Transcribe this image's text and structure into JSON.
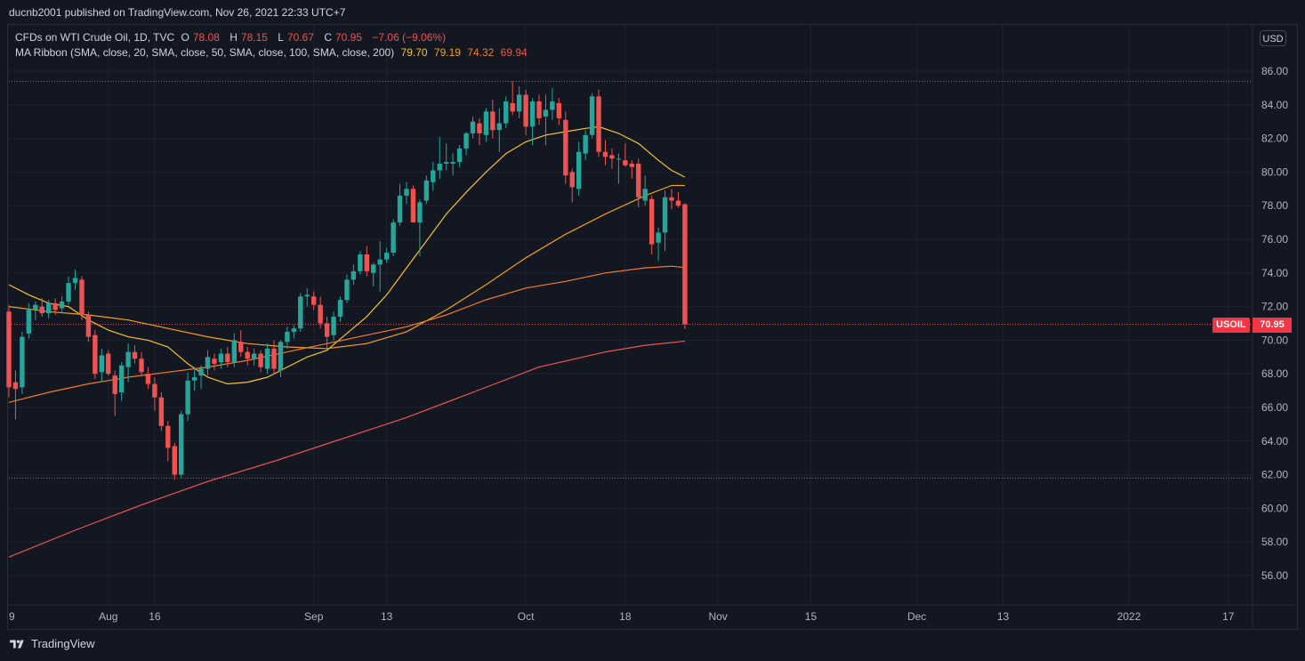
{
  "header": {
    "published": "ducnb2001 published on TradingView.com, Nov 26, 2021 22:33 UTC+7"
  },
  "legend": {
    "title": "CFDs on WTI Crude Oil, 1D, TVC",
    "o_label": "O",
    "o_value": "78.08",
    "h_label": "H",
    "h_value": "78.15",
    "l_label": "L",
    "l_value": "70.67",
    "c_label": "C",
    "c_value": "70.95",
    "change": "−7.06 (−9.06%)",
    "ma_title": "MA Ribbon (SMA, close, 20, SMA, close, 50, SMA, close, 100, SMA, close, 200)",
    "ma_values": [
      {
        "value": "79.70",
        "color": "#f7c325"
      },
      {
        "value": "79.19",
        "color": "#f4a018"
      },
      {
        "value": "74.32",
        "color": "#f57c25"
      },
      {
        "value": "69.94",
        "color": "#ef5350"
      }
    ]
  },
  "currency_button": "USD",
  "price_tag": {
    "symbol": "USOIL",
    "value": "70.95"
  },
  "footer": {
    "brand": "TradingView"
  },
  "chart_data": {
    "type": "candlestick",
    "y_axis_side": "right",
    "ylim": [
      54.5,
      88.0
    ],
    "y_ticks": [
      "86.00",
      "84.00",
      "82.00",
      "80.00",
      "78.00",
      "76.00",
      "74.00",
      "72.00",
      "70.00",
      "68.00",
      "66.00",
      "64.00",
      "62.00",
      "60.00",
      "58.00",
      "56.00"
    ],
    "x_ticks": [
      {
        "label": "9",
        "day": 0
      },
      {
        "label": "Aug",
        "day": 15
      },
      {
        "label": "16",
        "day": 22
      },
      {
        "label": "Sep",
        "day": 46
      },
      {
        "label": "13",
        "day": 57
      },
      {
        "label": "Oct",
        "day": 78
      },
      {
        "label": "18",
        "day": 93
      },
      {
        "label": "Nov",
        "day": 107
      },
      {
        "label": "15",
        "day": 121
      },
      {
        "label": "Dec",
        "day": 137
      },
      {
        "label": "13",
        "day": 150
      },
      {
        "label": "2022",
        "day": 169
      },
      {
        "label": "17",
        "day": 184
      }
    ],
    "x_max_day": 192,
    "dotted_levels": [
      85.4,
      61.8
    ],
    "last_price_line": 70.95,
    "up_color": "#26a69a",
    "down_color": "#ef5350",
    "candles": [
      {
        "d": 0,
        "o": 71.7,
        "h": 72.1,
        "l": 66.6,
        "c": 67.2
      },
      {
        "d": 1,
        "o": 67.5,
        "h": 68.2,
        "l": 65.3,
        "c": 67.1
      },
      {
        "d": 2,
        "o": 67.2,
        "h": 70.5,
        "l": 66.8,
        "c": 70.2
      },
      {
        "d": 3,
        "o": 70.4,
        "h": 72.2,
        "l": 70.1,
        "c": 71.8
      },
      {
        "d": 4,
        "o": 71.8,
        "h": 72.3,
        "l": 71.2,
        "c": 72.1
      },
      {
        "d": 5,
        "o": 72.0,
        "h": 72.5,
        "l": 71.4,
        "c": 71.6
      },
      {
        "d": 6,
        "o": 71.6,
        "h": 72.4,
        "l": 71.3,
        "c": 72.2
      },
      {
        "d": 7,
        "o": 72.2,
        "h": 72.5,
        "l": 71.5,
        "c": 71.8
      },
      {
        "d": 8,
        "o": 71.9,
        "h": 72.6,
        "l": 71.6,
        "c": 72.3
      },
      {
        "d": 9,
        "o": 72.3,
        "h": 73.8,
        "l": 72.1,
        "c": 73.4
      },
      {
        "d": 10,
        "o": 73.4,
        "h": 74.2,
        "l": 73.0,
        "c": 73.7
      },
      {
        "d": 11,
        "o": 73.6,
        "h": 73.8,
        "l": 71.2,
        "c": 71.5
      },
      {
        "d": 12,
        "o": 71.5,
        "h": 71.7,
        "l": 69.9,
        "c": 70.2
      },
      {
        "d": 13,
        "o": 70.3,
        "h": 70.6,
        "l": 67.7,
        "c": 68.0
      },
      {
        "d": 14,
        "o": 68.1,
        "h": 69.5,
        "l": 67.5,
        "c": 69.1
      },
      {
        "d": 15,
        "o": 69.2,
        "h": 69.4,
        "l": 67.9,
        "c": 68.0
      },
      {
        "d": 16,
        "o": 67.9,
        "h": 68.2,
        "l": 65.5,
        "c": 66.8
      },
      {
        "d": 17,
        "o": 66.9,
        "h": 68.7,
        "l": 66.4,
        "c": 68.5
      },
      {
        "d": 18,
        "o": 68.4,
        "h": 69.8,
        "l": 67.5,
        "c": 69.3
      },
      {
        "d": 19,
        "o": 69.3,
        "h": 69.7,
        "l": 68.6,
        "c": 68.9
      },
      {
        "d": 20,
        "o": 68.9,
        "h": 69.3,
        "l": 67.9,
        "c": 68.1
      },
      {
        "d": 21,
        "o": 68.0,
        "h": 68.4,
        "l": 67.1,
        "c": 67.4
      },
      {
        "d": 22,
        "o": 67.4,
        "h": 67.8,
        "l": 65.8,
        "c": 66.6
      },
      {
        "d": 23,
        "o": 66.6,
        "h": 66.9,
        "l": 64.6,
        "c": 64.9
      },
      {
        "d": 24,
        "o": 64.9,
        "h": 65.2,
        "l": 62.8,
        "c": 63.6
      },
      {
        "d": 25,
        "o": 63.7,
        "h": 63.9,
        "l": 61.7,
        "c": 62.0
      },
      {
        "d": 26,
        "o": 62.0,
        "h": 65.8,
        "l": 61.8,
        "c": 65.6
      },
      {
        "d": 27,
        "o": 65.6,
        "h": 68.1,
        "l": 65.2,
        "c": 67.6
      },
      {
        "d": 28,
        "o": 67.6,
        "h": 68.4,
        "l": 67.0,
        "c": 67.8
      },
      {
        "d": 29,
        "o": 67.9,
        "h": 68.5,
        "l": 67.1,
        "c": 68.3
      },
      {
        "d": 30,
        "o": 68.3,
        "h": 69.4,
        "l": 67.9,
        "c": 69.0
      },
      {
        "d": 31,
        "o": 68.9,
        "h": 69.2,
        "l": 68.2,
        "c": 68.6
      },
      {
        "d": 32,
        "o": 68.7,
        "h": 69.5,
        "l": 68.3,
        "c": 69.2
      },
      {
        "d": 33,
        "o": 69.2,
        "h": 69.6,
        "l": 68.4,
        "c": 68.7
      },
      {
        "d": 34,
        "o": 68.7,
        "h": 70.4,
        "l": 68.4,
        "c": 70.0
      },
      {
        "d": 35,
        "o": 69.9,
        "h": 70.6,
        "l": 69.0,
        "c": 69.3
      },
      {
        "d": 36,
        "o": 69.3,
        "h": 69.6,
        "l": 68.5,
        "c": 68.9
      },
      {
        "d": 37,
        "o": 68.9,
        "h": 69.5,
        "l": 68.5,
        "c": 69.2
      },
      {
        "d": 38,
        "o": 69.2,
        "h": 69.4,
        "l": 68.1,
        "c": 68.4
      },
      {
        "d": 39,
        "o": 68.3,
        "h": 69.8,
        "l": 68.0,
        "c": 69.5
      },
      {
        "d": 40,
        "o": 69.5,
        "h": 70.0,
        "l": 68.0,
        "c": 68.3
      },
      {
        "d": 41,
        "o": 68.2,
        "h": 70.0,
        "l": 67.8,
        "c": 69.9
      },
      {
        "d": 42,
        "o": 69.9,
        "h": 70.8,
        "l": 69.5,
        "c": 70.5
      },
      {
        "d": 43,
        "o": 70.5,
        "h": 70.9,
        "l": 70.1,
        "c": 70.7
      },
      {
        "d": 44,
        "o": 70.7,
        "h": 72.8,
        "l": 70.5,
        "c": 72.6
      },
      {
        "d": 45,
        "o": 72.6,
        "h": 73.1,
        "l": 72.0,
        "c": 72.7
      },
      {
        "d": 46,
        "o": 72.6,
        "h": 72.9,
        "l": 71.8,
        "c": 72.1
      },
      {
        "d": 47,
        "o": 72.1,
        "h": 72.6,
        "l": 70.7,
        "c": 71.0
      },
      {
        "d": 48,
        "o": 71.0,
        "h": 71.4,
        "l": 69.5,
        "c": 70.2
      },
      {
        "d": 49,
        "o": 70.3,
        "h": 71.7,
        "l": 70.0,
        "c": 71.4
      },
      {
        "d": 50,
        "o": 71.4,
        "h": 72.6,
        "l": 71.1,
        "c": 72.4
      },
      {
        "d": 51,
        "o": 72.4,
        "h": 73.9,
        "l": 72.2,
        "c": 73.6
      },
      {
        "d": 52,
        "o": 73.6,
        "h": 74.5,
        "l": 73.3,
        "c": 74.1
      },
      {
        "d": 53,
        "o": 74.1,
        "h": 75.3,
        "l": 73.9,
        "c": 75.1
      },
      {
        "d": 54,
        "o": 75.1,
        "h": 75.6,
        "l": 73.8,
        "c": 74.1
      },
      {
        "d": 55,
        "o": 74.0,
        "h": 74.6,
        "l": 73.2,
        "c": 74.5
      },
      {
        "d": 56,
        "o": 74.5,
        "h": 75.9,
        "l": 72.9,
        "c": 74.8
      },
      {
        "d": 57,
        "o": 74.8,
        "h": 75.5,
        "l": 74.6,
        "c": 75.2
      },
      {
        "d": 58,
        "o": 75.2,
        "h": 77.2,
        "l": 75.0,
        "c": 77.0
      },
      {
        "d": 59,
        "o": 77.0,
        "h": 79.3,
        "l": 76.8,
        "c": 78.6
      },
      {
        "d": 60,
        "o": 78.6,
        "h": 79.4,
        "l": 78.1,
        "c": 79.0
      },
      {
        "d": 61,
        "o": 79.0,
        "h": 79.2,
        "l": 77.2,
        "c": 77.0
      },
      {
        "d": 62,
        "o": 77.0,
        "h": 78.4,
        "l": 75.0,
        "c": 78.2
      },
      {
        "d": 63,
        "o": 78.3,
        "h": 79.8,
        "l": 78.1,
        "c": 79.5
      },
      {
        "d": 64,
        "o": 79.4,
        "h": 80.6,
        "l": 78.9,
        "c": 80.1
      },
      {
        "d": 65,
        "o": 80.1,
        "h": 82.1,
        "l": 79.6,
        "c": 80.5
      },
      {
        "d": 66,
        "o": 80.5,
        "h": 81.7,
        "l": 80.1,
        "c": 80.6
      },
      {
        "d": 67,
        "o": 80.5,
        "h": 81.1,
        "l": 79.8,
        "c": 80.6
      },
      {
        "d": 68,
        "o": 80.6,
        "h": 81.6,
        "l": 80.3,
        "c": 81.4
      },
      {
        "d": 69,
        "o": 81.4,
        "h": 82.4,
        "l": 81.0,
        "c": 82.3
      },
      {
        "d": 70,
        "o": 82.3,
        "h": 83.3,
        "l": 82.0,
        "c": 83.0
      },
      {
        "d": 71,
        "o": 82.9,
        "h": 83.2,
        "l": 81.6,
        "c": 82.3
      },
      {
        "d": 72,
        "o": 82.2,
        "h": 83.8,
        "l": 81.8,
        "c": 83.6
      },
      {
        "d": 73,
        "o": 83.6,
        "h": 84.3,
        "l": 82.0,
        "c": 82.5
      },
      {
        "d": 74,
        "o": 82.5,
        "h": 83.8,
        "l": 81.2,
        "c": 82.9
      },
      {
        "d": 75,
        "o": 82.9,
        "h": 84.5,
        "l": 82.6,
        "c": 84.2
      },
      {
        "d": 76,
        "o": 84.1,
        "h": 85.4,
        "l": 83.4,
        "c": 83.6
      },
      {
        "d": 77,
        "o": 83.6,
        "h": 85.1,
        "l": 83.2,
        "c": 84.6
      },
      {
        "d": 78,
        "o": 84.6,
        "h": 84.9,
        "l": 82.2,
        "c": 82.7
      },
      {
        "d": 79,
        "o": 82.7,
        "h": 84.4,
        "l": 81.6,
        "c": 84.2
      },
      {
        "d": 80,
        "o": 84.2,
        "h": 84.6,
        "l": 82.8,
        "c": 83.2
      },
      {
        "d": 81,
        "o": 83.3,
        "h": 84.6,
        "l": 81.6,
        "c": 83.7
      },
      {
        "d": 82,
        "o": 83.7,
        "h": 85.0,
        "l": 83.1,
        "c": 84.2
      },
      {
        "d": 83,
        "o": 84.1,
        "h": 84.4,
        "l": 82.8,
        "c": 83.2
      },
      {
        "d": 84,
        "o": 83.1,
        "h": 83.6,
        "l": 79.3,
        "c": 79.8
      },
      {
        "d": 85,
        "o": 80.0,
        "h": 80.2,
        "l": 78.2,
        "c": 79.1
      },
      {
        "d": 86,
        "o": 79.0,
        "h": 81.8,
        "l": 78.6,
        "c": 81.2
      },
      {
        "d": 87,
        "o": 81.1,
        "h": 82.5,
        "l": 80.7,
        "c": 82.2
      },
      {
        "d": 88,
        "o": 82.2,
        "h": 84.7,
        "l": 82.0,
        "c": 84.5
      },
      {
        "d": 89,
        "o": 84.5,
        "h": 84.9,
        "l": 80.9,
        "c": 81.2
      },
      {
        "d": 90,
        "o": 81.2,
        "h": 81.9,
        "l": 80.4,
        "c": 80.9
      },
      {
        "d": 91,
        "o": 81.0,
        "h": 81.4,
        "l": 80.2,
        "c": 80.8
      },
      {
        "d": 92,
        "o": 80.8,
        "h": 81.1,
        "l": 79.3,
        "c": 80.8
      },
      {
        "d": 93,
        "o": 80.7,
        "h": 81.7,
        "l": 80.3,
        "c": 80.4
      },
      {
        "d": 94,
        "o": 80.5,
        "h": 80.7,
        "l": 79.6,
        "c": 80.3
      },
      {
        "d": 95,
        "o": 80.5,
        "h": 80.8,
        "l": 77.9,
        "c": 78.5
      },
      {
        "d": 96,
        "o": 78.3,
        "h": 79.8,
        "l": 78.0,
        "c": 79.0
      },
      {
        "d": 97,
        "o": 78.4,
        "h": 78.6,
        "l": 75.1,
        "c": 75.7
      },
      {
        "d": 98,
        "o": 75.8,
        "h": 76.7,
        "l": 74.7,
        "c": 76.4
      },
      {
        "d": 99,
        "o": 76.4,
        "h": 78.9,
        "l": 75.3,
        "c": 78.5
      },
      {
        "d": 100,
        "o": 78.5,
        "h": 79.0,
        "l": 77.8,
        "c": 78.3
      },
      {
        "d": 101,
        "o": 78.3,
        "h": 78.8,
        "l": 77.9,
        "c": 78.0
      },
      {
        "d": 102,
        "o": 78.08,
        "h": 78.15,
        "l": 70.67,
        "c": 70.95
      }
    ],
    "ma_lines": [
      {
        "period": 20,
        "color": "#f7c325",
        "points": [
          [
            0,
            73.3
          ],
          [
            3,
            72.7
          ],
          [
            6,
            72.2
          ],
          [
            9,
            72.0
          ],
          [
            12,
            71.2
          ],
          [
            15,
            70.6
          ],
          [
            18,
            70.2
          ],
          [
            21,
            70.0
          ],
          [
            24,
            69.6
          ],
          [
            27,
            68.6
          ],
          [
            30,
            67.8
          ],
          [
            33,
            67.4
          ],
          [
            36,
            67.5
          ],
          [
            39,
            67.8
          ],
          [
            42,
            68.4
          ],
          [
            45,
            69.0
          ],
          [
            48,
            69.4
          ],
          [
            51,
            70.4
          ],
          [
            54,
            71.4
          ],
          [
            57,
            72.7
          ],
          [
            60,
            74.3
          ],
          [
            63,
            75.9
          ],
          [
            66,
            77.5
          ],
          [
            69,
            78.8
          ],
          [
            72,
            80.0
          ],
          [
            75,
            81.1
          ],
          [
            78,
            81.8
          ],
          [
            81,
            82.2
          ],
          [
            84,
            82.4
          ],
          [
            87,
            82.6
          ],
          [
            89,
            82.7
          ],
          [
            92,
            82.3
          ],
          [
            95,
            81.7
          ],
          [
            98,
            80.7
          ],
          [
            100,
            80.1
          ],
          [
            102,
            79.7
          ]
        ]
      },
      {
        "period": 50,
        "color": "#f4a018",
        "points": [
          [
            0,
            72.0
          ],
          [
            6,
            71.7
          ],
          [
            12,
            71.5
          ],
          [
            18,
            71.2
          ],
          [
            24,
            70.7
          ],
          [
            30,
            70.2
          ],
          [
            36,
            69.8
          ],
          [
            42,
            69.6
          ],
          [
            48,
            69.5
          ],
          [
            54,
            69.8
          ],
          [
            60,
            70.5
          ],
          [
            66,
            71.8
          ],
          [
            72,
            73.3
          ],
          [
            78,
            74.9
          ],
          [
            84,
            76.3
          ],
          [
            90,
            77.5
          ],
          [
            96,
            78.6
          ],
          [
            100,
            79.2
          ],
          [
            102,
            79.2
          ]
        ]
      },
      {
        "period": 100,
        "color": "#f57c25",
        "points": [
          [
            0,
            66.3
          ],
          [
            6,
            66.9
          ],
          [
            12,
            67.4
          ],
          [
            18,
            67.8
          ],
          [
            24,
            68.1
          ],
          [
            30,
            68.4
          ],
          [
            36,
            68.8
          ],
          [
            42,
            69.3
          ],
          [
            48,
            69.8
          ],
          [
            54,
            70.3
          ],
          [
            60,
            70.8
          ],
          [
            66,
            71.5
          ],
          [
            72,
            72.4
          ],
          [
            78,
            73.1
          ],
          [
            84,
            73.5
          ],
          [
            90,
            74.0
          ],
          [
            96,
            74.3
          ],
          [
            100,
            74.4
          ],
          [
            102,
            74.32
          ]
        ]
      },
      {
        "period": 200,
        "color": "#ef5350",
        "points": [
          [
            0,
            57.1
          ],
          [
            10,
            58.7
          ],
          [
            20,
            60.2
          ],
          [
            30,
            61.6
          ],
          [
            40,
            62.8
          ],
          [
            50,
            64.1
          ],
          [
            60,
            65.4
          ],
          [
            70,
            66.9
          ],
          [
            80,
            68.4
          ],
          [
            90,
            69.3
          ],
          [
            96,
            69.7
          ],
          [
            102,
            69.94
          ]
        ]
      }
    ]
  }
}
